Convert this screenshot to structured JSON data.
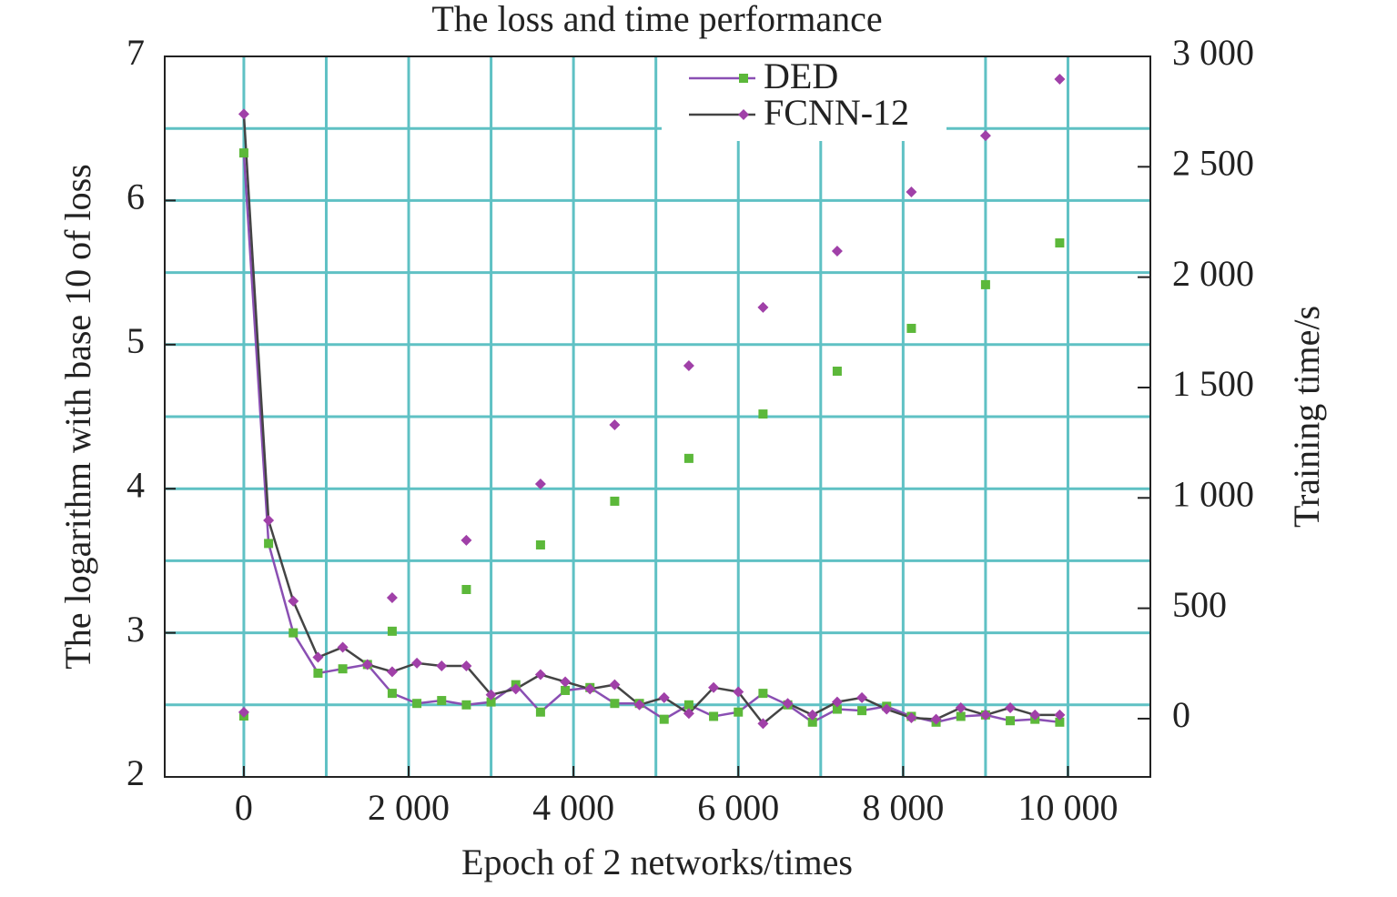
{
  "chart_data": {
    "type": "line",
    "title": "The loss and time performance",
    "x_label": "Epoch of 2 networks/times",
    "y_label": "The logarithm with base 10 of loss",
    "y2_label": "Training time/s",
    "xlim": [
      -960,
      11000
    ],
    "xticks": [
      0,
      {
        "value": 2000,
        "label": "2 000"
      },
      {
        "value": 4000,
        "label": "4 000"
      },
      {
        "value": 6000,
        "label": "6 000"
      },
      {
        "value": 8000,
        "label": "8 000"
      },
      {
        "value": 10000,
        "label": "10 000"
      }
    ],
    "x_grid": [
      1000,
      2000,
      3000,
      4000,
      5000,
      6000,
      7000,
      8000,
      9000,
      10000,
      0
    ],
    "ylim": [
      2,
      7
    ],
    "yticks": [
      2,
      3,
      4,
      5,
      6,
      7
    ],
    "y_grid": [
      2.5,
      3,
      3.5,
      4,
      4.5,
      5,
      5.5,
      6,
      6.5
    ],
    "y2lim": [
      -264,
      3000
    ],
    "y2ticks": [
      0,
      {
        "value": 500,
        "label": "500"
      },
      {
        "value": 1000,
        "label": "1 000"
      },
      {
        "value": 1500,
        "label": "1 500"
      },
      {
        "value": 2000,
        "label": "2 000"
      },
      {
        "value": 2500,
        "label": "2 500"
      },
      {
        "value": 3000,
        "label": "3 000"
      }
    ],
    "grid": true,
    "grid_color": "#5fc1c4",
    "legend": "top",
    "x": [
      0,
      300,
      600,
      900,
      1200,
      1500,
      1800,
      2100,
      2400,
      2700,
      3000,
      3300,
      3600,
      3900,
      4200,
      4500,
      4800,
      5100,
      5400,
      5700,
      6000,
      6300,
      6600,
      6900,
      7200,
      7500,
      7800,
      8100,
      8400,
      8700,
      9000,
      9300,
      9600,
      9900
    ],
    "time_x": [
      0,
      1800,
      2700,
      3600,
      4500,
      5400,
      6300,
      7200,
      8100,
      9000,
      9900
    ],
    "series": [
      {
        "name": "DED",
        "color": "#8a4fb3",
        "marker_color": "#5cb83a",
        "marker": "square",
        "values": [
          6.33,
          3.62,
          3.0,
          2.72,
          2.75,
          2.78,
          2.58,
          2.51,
          2.53,
          2.5,
          2.52,
          2.64,
          2.45,
          2.6,
          2.62,
          2.51,
          2.51,
          2.4,
          2.5,
          2.42,
          2.45,
          2.58,
          2.5,
          2.38,
          2.47,
          2.46,
          2.49,
          2.42,
          2.38,
          2.42,
          2.43,
          2.39,
          2.4,
          2.38
        ],
        "time_values": [
          12,
          396,
          585,
          787,
          985,
          1179,
          1380,
          1574,
          1768,
          1966,
          2155
        ]
      },
      {
        "name": "FCNN-12",
        "color": "#444444",
        "marker_color": "#a040a8",
        "marker": "diamond",
        "values": [
          6.6,
          3.78,
          3.22,
          2.83,
          2.9,
          2.78,
          2.73,
          2.79,
          2.77,
          2.77,
          2.57,
          2.61,
          2.71,
          2.66,
          2.61,
          2.64,
          2.5,
          2.55,
          2.44,
          2.62,
          2.59,
          2.37,
          2.51,
          2.43,
          2.52,
          2.55,
          2.47,
          2.41,
          2.4,
          2.48,
          2.43,
          2.48,
          2.43,
          2.43
        ],
        "time_values": [
          29,
          548,
          808,
          1063,
          1331,
          1599,
          1863,
          2118,
          2386,
          2641,
          2897
        ]
      }
    ]
  }
}
